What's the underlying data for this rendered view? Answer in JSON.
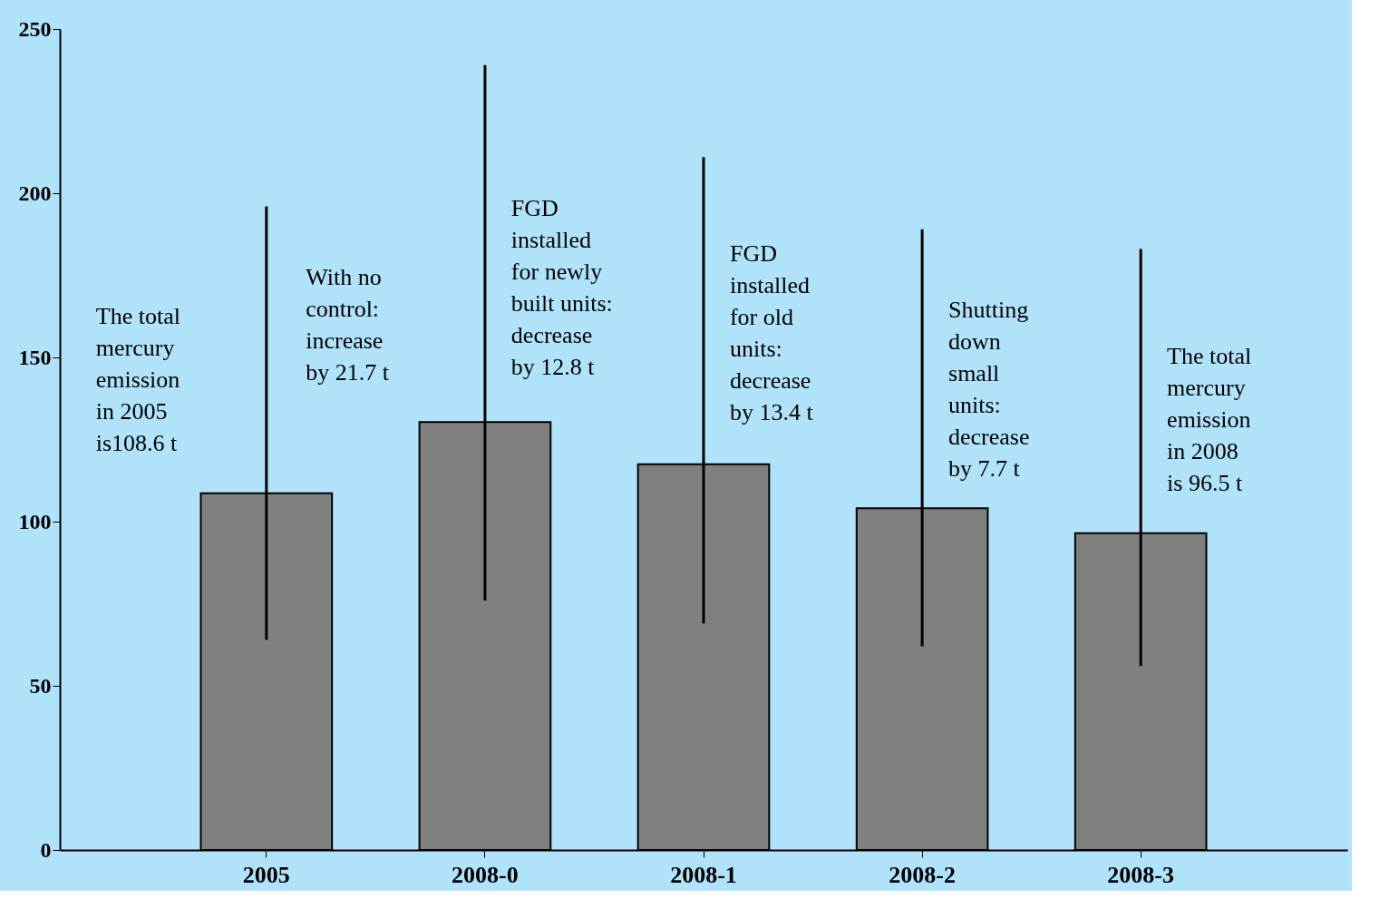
{
  "chart_data": {
    "type": "bar",
    "categories": [
      "2005",
      "2008-0",
      "2008-1",
      "2008-2",
      "2008-3"
    ],
    "values": [
      108.6,
      130.3,
      117.5,
      104.1,
      96.5
    ],
    "color": "#808080",
    "errors": [
      [
        64,
        196
      ],
      [
        76,
        239
      ],
      [
        69,
        211
      ],
      [
        62,
        189
      ],
      [
        56,
        183
      ]
    ],
    "ylim": [
      0,
      250
    ],
    "yticks": [
      0,
      50,
      100,
      150,
      200,
      250
    ],
    "grid": false,
    "annotations": [
      "The total\nmercury\nemission\nin 2005\nis108.6 t",
      "With no\ncontrol:\nincrease\nby 21.7 t",
      "FGD\ninstalled\nfor newly\nbuilt units:\ndecrease\nby 12.8 t",
      "FGD\ninstalled\nfor old\nunits:\ndecrease\nby 13.4 t",
      "Shutting\ndown\nsmall\nunits:\ndecrease\nby 7.7 t",
      "The total\nmercury\nemission\nin 2008\nis 96.5 t"
    ]
  }
}
